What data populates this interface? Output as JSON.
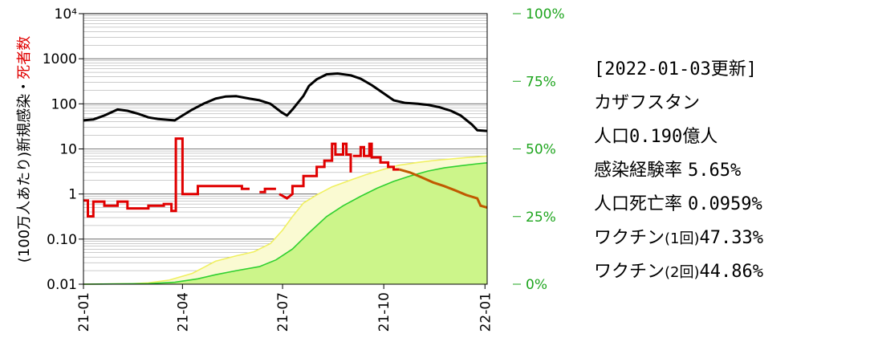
{
  "chart_data": {
    "type": "line",
    "ylabel_parts": [
      "(100万人あたり)新規感染",
      "・",
      "死者数"
    ],
    "y_left_ticks": [
      "10⁴",
      "1000",
      "100",
      "10",
      "1",
      "0.10",
      "0.01"
    ],
    "y_left_scale": "log",
    "y_left_range": [
      0.01,
      10000
    ],
    "y_right_ticks": [
      "0%",
      "25%",
      "50%",
      "75%",
      "100%"
    ],
    "y_right_range": [
      0,
      100
    ],
    "x_ticks": [
      "21-01",
      "21-04",
      "21-07",
      "21-10",
      "22-01"
    ],
    "x_range": [
      "2021-01-01",
      "2022-01-03"
    ],
    "grid": true,
    "colors": {
      "cases": "#000000",
      "deaths": "#e00000",
      "deaths_recent": "#c05a00",
      "vaccine1": "#f0f060",
      "vaccine2": "#30d030",
      "vaccine2_fill": "#ccf58a",
      "right_axis": "#1ea51e"
    },
    "series": [
      {
        "key": "cases",
        "points": [
          [
            "2021-01-01",
            43
          ],
          [
            "2021-01-10",
            45
          ],
          [
            "2021-01-20",
            55
          ],
          [
            "2021-02-01",
            75
          ],
          [
            "2021-02-10",
            70
          ],
          [
            "2021-02-20",
            60
          ],
          [
            "2021-03-01",
            50
          ],
          [
            "2021-03-10",
            46
          ],
          [
            "2021-03-20",
            44
          ],
          [
            "2021-03-25",
            43
          ],
          [
            "2021-04-01",
            55
          ],
          [
            "2021-04-10",
            75
          ],
          [
            "2021-04-20",
            100
          ],
          [
            "2021-05-01",
            130
          ],
          [
            "2021-05-10",
            145
          ],
          [
            "2021-05-20",
            148
          ],
          [
            "2021-06-01",
            130
          ],
          [
            "2021-06-10",
            120
          ],
          [
            "2021-06-20",
            100
          ],
          [
            "2021-06-30",
            65
          ],
          [
            "2021-07-05",
            55
          ],
          [
            "2021-07-10",
            75
          ],
          [
            "2021-07-20",
            150
          ],
          [
            "2021-07-25",
            250
          ],
          [
            "2021-08-01",
            350
          ],
          [
            "2021-08-10",
            450
          ],
          [
            "2021-08-20",
            470
          ],
          [
            "2021-09-01",
            430
          ],
          [
            "2021-09-10",
            360
          ],
          [
            "2021-09-20",
            260
          ],
          [
            "2021-10-01",
            170
          ],
          [
            "2021-10-10",
            120
          ],
          [
            "2021-10-20",
            105
          ],
          [
            "2021-11-01",
            100
          ],
          [
            "2021-11-10",
            95
          ],
          [
            "2021-11-20",
            85
          ],
          [
            "2021-12-01",
            70
          ],
          [
            "2021-12-10",
            55
          ],
          [
            "2021-12-20",
            35
          ],
          [
            "2021-12-25",
            26
          ],
          [
            "2022-01-03",
            25
          ]
        ]
      },
      {
        "key": "deaths",
        "segments": [
          [
            [
              "2021-01-01",
              0.72
            ],
            [
              "2021-01-05",
              0.72
            ],
            [
              "2021-01-05",
              0.32
            ],
            [
              "2021-01-10",
              0.32
            ],
            [
              "2021-01-10",
              0.68
            ],
            [
              "2021-01-20",
              0.68
            ],
            [
              "2021-01-20",
              0.55
            ],
            [
              "2021-02-01",
              0.55
            ],
            [
              "2021-02-01",
              0.68
            ],
            [
              "2021-02-10",
              0.68
            ],
            [
              "2021-02-10",
              0.48
            ],
            [
              "2021-03-01",
              0.48
            ],
            [
              "2021-03-01",
              0.55
            ],
            [
              "2021-03-15",
              0.55
            ],
            [
              "2021-03-15",
              0.6
            ],
            [
              "2021-03-22",
              0.6
            ],
            [
              "2021-03-22",
              0.42
            ],
            [
              "2021-03-26",
              0.42
            ],
            [
              "2021-03-26",
              17
            ],
            [
              "2021-04-01",
              17
            ],
            [
              "2021-04-01",
              1.0
            ],
            [
              "2021-04-15",
              1.0
            ],
            [
              "2021-04-15",
              1.5
            ],
            [
              "2021-05-25",
              1.5
            ],
            [
              "2021-05-25",
              1.3
            ],
            [
              "2021-06-01",
              1.3
            ]
          ],
          [
            [
              "2021-06-10",
              1.1
            ],
            [
              "2021-06-15",
              1.1
            ],
            [
              "2021-06-15",
              1.3
            ],
            [
              "2021-06-25",
              1.3
            ]
          ],
          [
            [
              "2021-06-28",
              1.0
            ],
            [
              "2021-07-05",
              0.8
            ],
            [
              "2021-07-10",
              1.0
            ],
            [
              "2021-07-10",
              1.5
            ],
            [
              "2021-07-20",
              1.5
            ],
            [
              "2021-07-20",
              2.5
            ],
            [
              "2021-08-01",
              2.5
            ],
            [
              "2021-08-01",
              4.0
            ],
            [
              "2021-08-08",
              4.0
            ],
            [
              "2021-08-08",
              5.5
            ],
            [
              "2021-08-15",
              5.5
            ],
            [
              "2021-08-15",
              13
            ],
            [
              "2021-08-18",
              13
            ],
            [
              "2021-08-18",
              7.5
            ],
            [
              "2021-08-25",
              7.5
            ],
            [
              "2021-08-25",
              13
            ],
            [
              "2021-08-28",
              13
            ],
            [
              "2021-08-28",
              7.5
            ],
            [
              "2021-09-01",
              7.5
            ],
            [
              "2021-09-01",
              3.0
            ]
          ],
          [
            [
              "2021-09-03",
              7.0
            ],
            [
              "2021-09-10",
              7.0
            ],
            [
              "2021-09-10",
              11
            ],
            [
              "2021-09-13",
              11
            ],
            [
              "2021-09-13",
              7.0
            ],
            [
              "2021-09-18",
              7.0
            ],
            [
              "2021-09-18",
              13
            ],
            [
              "2021-09-20",
              13
            ],
            [
              "2021-09-20",
              6.5
            ],
            [
              "2021-09-28",
              6.5
            ],
            [
              "2021-09-28",
              5.0
            ],
            [
              "2021-10-05",
              5.0
            ],
            [
              "2021-10-05",
              4.0
            ],
            [
              "2021-10-10",
              4.0
            ],
            [
              "2021-10-10",
              3.5
            ],
            [
              "2021-10-15",
              3.5
            ]
          ]
        ]
      },
      {
        "key": "deaths_recent",
        "points": [
          [
            "2021-10-15",
            3.5
          ],
          [
            "2021-10-25",
            3.0
          ],
          [
            "2021-11-05",
            2.3
          ],
          [
            "2021-11-15",
            1.8
          ],
          [
            "2021-11-25",
            1.5
          ],
          [
            "2021-12-05",
            1.2
          ],
          [
            "2021-12-15",
            0.95
          ],
          [
            "2021-12-25",
            0.8
          ],
          [
            "2021-12-28",
            0.55
          ],
          [
            "2022-01-03",
            0.5
          ]
        ]
      },
      {
        "key": "vaccine1",
        "points": [
          [
            "2021-01-01",
            0
          ],
          [
            "2021-02-15",
            0.2
          ],
          [
            "2021-03-01",
            0.5
          ],
          [
            "2021-03-20",
            1.5
          ],
          [
            "2021-04-10",
            4
          ],
          [
            "2021-05-01",
            8.5
          ],
          [
            "2021-05-20",
            10.5
          ],
          [
            "2021-06-05",
            12
          ],
          [
            "2021-06-20",
            15
          ],
          [
            "2021-07-01",
            20
          ],
          [
            "2021-07-10",
            25
          ],
          [
            "2021-07-20",
            30
          ],
          [
            "2021-08-01",
            33
          ],
          [
            "2021-08-15",
            36
          ],
          [
            "2021-09-01",
            38.5
          ],
          [
            "2021-09-15",
            40.5
          ],
          [
            "2021-10-01",
            42.5
          ],
          [
            "2021-10-15",
            44
          ],
          [
            "2021-11-01",
            45
          ],
          [
            "2021-11-15",
            45.7
          ],
          [
            "2021-12-01",
            46.3
          ],
          [
            "2021-12-15",
            46.8
          ],
          [
            "2022-01-03",
            47.33
          ]
        ]
      },
      {
        "key": "vaccine2",
        "points": [
          [
            "2021-01-01",
            0
          ],
          [
            "2021-03-01",
            0.2
          ],
          [
            "2021-03-25",
            0.7
          ],
          [
            "2021-04-15",
            2
          ],
          [
            "2021-05-01",
            3.5
          ],
          [
            "2021-05-20",
            5
          ],
          [
            "2021-06-10",
            6.5
          ],
          [
            "2021-06-25",
            9
          ],
          [
            "2021-07-10",
            13
          ],
          [
            "2021-07-25",
            19
          ],
          [
            "2021-08-10",
            25
          ],
          [
            "2021-08-25",
            29
          ],
          [
            "2021-09-10",
            32.5
          ],
          [
            "2021-09-25",
            35.5
          ],
          [
            "2021-10-10",
            38
          ],
          [
            "2021-10-25",
            40
          ],
          [
            "2021-11-10",
            41.8
          ],
          [
            "2021-11-25",
            43
          ],
          [
            "2021-12-10",
            43.8
          ],
          [
            "2021-12-25",
            44.5
          ],
          [
            "2022-01-03",
            44.86
          ]
        ]
      }
    ]
  },
  "info": {
    "date": "[2022-01-03更新]",
    "country": "カザフスタン",
    "population_label": "人口",
    "population_value": "0.190億人",
    "case_rate_label": "感染経験率 ",
    "case_rate_value": "5.65%",
    "death_rate_label": "人口死亡率 ",
    "death_rate_value": "0.0959%",
    "vaccine1_label": "ワクチン",
    "vaccine1_dose": "(1回)",
    "vaccine1_value": "47.33%",
    "vaccine2_label": "ワクチン",
    "vaccine2_dose": "(2回)",
    "vaccine2_value": "44.86%"
  }
}
